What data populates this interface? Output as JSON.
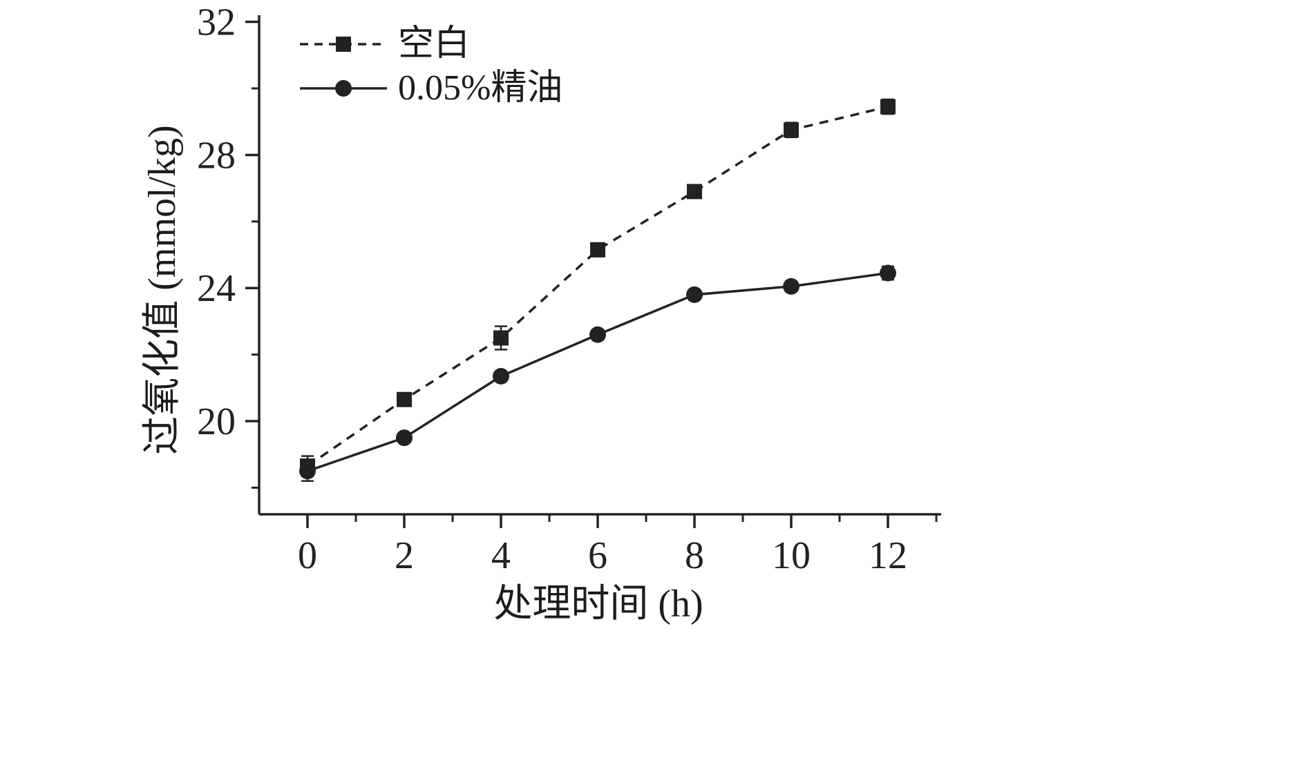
{
  "figure": {
    "background": "#ffffff",
    "ink_color": "#222222"
  },
  "chart_data": {
    "type": "line",
    "title": "",
    "xlabel": "处理时间 (h)",
    "ylabel": "过氧化值 (mmol/kg)",
    "x": [
      0,
      2,
      4,
      6,
      8,
      10,
      12
    ],
    "series": [
      {
        "name": "空白",
        "values": [
          18.65,
          20.65,
          22.5,
          25.15,
          26.9,
          28.75,
          29.45
        ],
        "errors": [
          0.3,
          0.12,
          0.35,
          0.2,
          0.12,
          0.22,
          0.22
        ],
        "line": "dashed",
        "marker": "square"
      },
      {
        "name": "0.05%精油",
        "values": [
          18.5,
          19.5,
          21.35,
          22.6,
          23.8,
          24.05,
          24.45
        ],
        "errors": [
          0.3,
          0.12,
          0.12,
          0.12,
          0.15,
          0.15,
          0.2
        ],
        "line": "solid",
        "marker": "circle"
      }
    ],
    "xticks": [
      0,
      2,
      4,
      6,
      8,
      10,
      12
    ],
    "yticks": [
      20,
      24,
      28,
      32
    ],
    "x_minor": [
      1,
      3,
      5,
      7,
      9,
      11,
      13
    ],
    "y_minor": [
      18,
      22,
      26,
      30
    ],
    "xlim": [
      -1,
      13.1
    ],
    "ylim": [
      17.2,
      32.2
    ],
    "grid": false,
    "legend_position": "top-left"
  }
}
